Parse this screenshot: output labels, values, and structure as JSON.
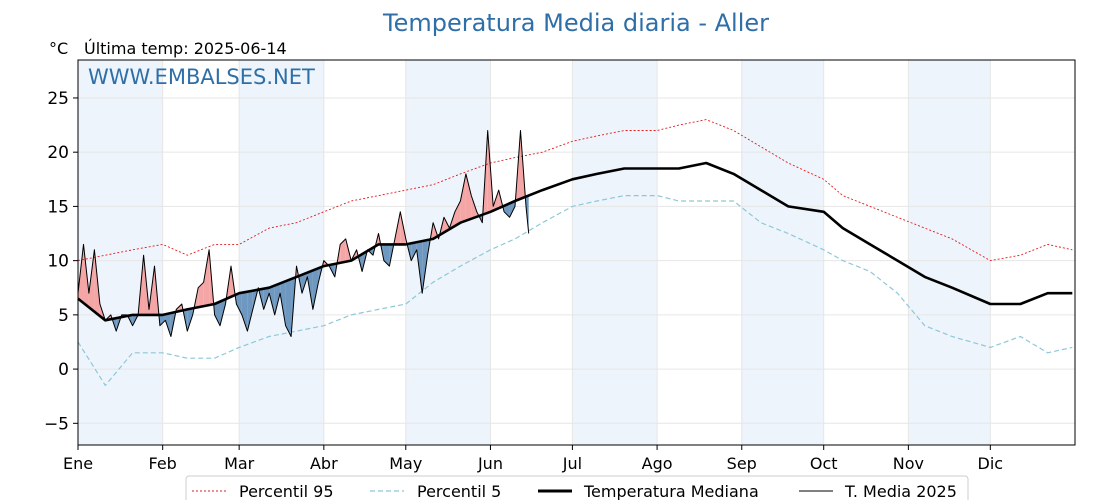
{
  "chart_data": {
    "type": "line",
    "title": "Temperatura Media diaria - Aller",
    "unit_label": "°C",
    "last_temp": "Última temp: 2025-06-14",
    "watermark": "WWW.EMBALSES.NET",
    "xlabel": "",
    "ylabel": "°C",
    "ylim": [
      -7,
      28.5
    ],
    "xlim": [
      0,
      365
    ],
    "y_ticks": [
      -5,
      0,
      5,
      10,
      15,
      20,
      25
    ],
    "months": [
      "Ene",
      "Feb",
      "Mar",
      "Abr",
      "May",
      "Jun",
      "Jul",
      "Ago",
      "Sep",
      "Oct",
      "Nov",
      "Dic"
    ],
    "month_starts": [
      0,
      31,
      59,
      90,
      120,
      151,
      181,
      212,
      243,
      273,
      304,
      334
    ],
    "grid": true,
    "legend_position": "bottom",
    "colors": {
      "p95": "#e41a1c",
      "p5": "#8ec8d8",
      "median": "#000000",
      "current": "#000000",
      "above_fill": "#f4a6a6",
      "below_fill": "#6f98c0",
      "band": "#eef4fb",
      "title": "#2f6fa8"
    },
    "series": [
      {
        "name": "Percentil 95",
        "style": "dotted-red",
        "x": [
          0,
          10,
          20,
          31,
          40,
          50,
          59,
          70,
          80,
          90,
          100,
          110,
          120,
          130,
          140,
          151,
          160,
          170,
          181,
          190,
          200,
          212,
          220,
          230,
          240,
          250,
          260,
          273,
          280,
          290,
          300,
          310,
          320,
          334,
          345,
          355,
          364
        ],
        "values": [
          10,
          10.5,
          11,
          11.5,
          10.5,
          11.5,
          11.5,
          13,
          13.5,
          14.5,
          15.5,
          16,
          16.5,
          17,
          18,
          19,
          19.5,
          20,
          21,
          21.5,
          22,
          22,
          22.5,
          23,
          22,
          20.5,
          19,
          17.5,
          16,
          15,
          14,
          13,
          12,
          10,
          10.5,
          11.5,
          11
        ]
      },
      {
        "name": "Percentil 5",
        "style": "dashed-cyan",
        "x": [
          0,
          5,
          10,
          20,
          31,
          40,
          50,
          59,
          70,
          80,
          90,
          100,
          110,
          120,
          130,
          140,
          151,
          160,
          170,
          181,
          190,
          200,
          212,
          220,
          230,
          240,
          250,
          260,
          273,
          280,
          290,
          300,
          310,
          320,
          334,
          345,
          355,
          364
        ],
        "values": [
          2.5,
          0.5,
          -1.5,
          1.5,
          1.5,
          1,
          1,
          2,
          3,
          3.5,
          4,
          5,
          5.5,
          6,
          8,
          9.5,
          11,
          12,
          13.5,
          15,
          15.5,
          16,
          16,
          15.5,
          15.5,
          15.5,
          13.5,
          12.5,
          11,
          10,
          9,
          7,
          4,
          3,
          2,
          3,
          1.5,
          2
        ]
      },
      {
        "name": "Temperatura Mediana",
        "style": "solid-thick",
        "x": [
          0,
          10,
          20,
          31,
          40,
          50,
          59,
          70,
          80,
          90,
          100,
          110,
          120,
          130,
          140,
          151,
          160,
          170,
          181,
          190,
          200,
          212,
          220,
          230,
          240,
          250,
          260,
          273,
          280,
          290,
          300,
          310,
          320,
          334,
          345,
          355,
          364
        ],
        "values": [
          6.5,
          4.5,
          5,
          5,
          5.5,
          6,
          7,
          7.5,
          8.5,
          9.5,
          10,
          11.5,
          11.5,
          12,
          13.5,
          14.5,
          15.5,
          16.5,
          17.5,
          18,
          18.5,
          18.5,
          18.5,
          19,
          18,
          16.5,
          15,
          14.5,
          13,
          11.5,
          10,
          8.5,
          7.5,
          6,
          6,
          7,
          7
        ]
      },
      {
        "name": "T. Media 2025",
        "style": "solid-thin",
        "x": [
          0,
          2,
          4,
          6,
          8,
          10,
          12,
          14,
          16,
          18,
          20,
          22,
          24,
          26,
          28,
          30,
          32,
          34,
          36,
          38,
          40,
          42,
          44,
          46,
          48,
          50,
          52,
          54,
          56,
          58,
          60,
          62,
          64,
          66,
          68,
          70,
          72,
          74,
          76,
          78,
          80,
          82,
          84,
          86,
          88,
          90,
          92,
          94,
          96,
          98,
          100,
          102,
          104,
          106,
          108,
          110,
          112,
          114,
          116,
          118,
          120,
          122,
          124,
          126,
          128,
          130,
          132,
          134,
          136,
          138,
          140,
          142,
          144,
          146,
          148,
          150,
          152,
          154,
          156,
          158,
          160,
          162,
          164,
          165
        ],
        "values": [
          7,
          11.5,
          7,
          11,
          6,
          4.5,
          5,
          3.5,
          5,
          5,
          4,
          5,
          10.5,
          5.5,
          9.5,
          4,
          4.5,
          3,
          5.5,
          6,
          3.5,
          5,
          7.5,
          8,
          11,
          5,
          4,
          6,
          9.5,
          6,
          5,
          3.5,
          5.5,
          7.5,
          5.5,
          7,
          5,
          7,
          4,
          3,
          9.5,
          7,
          8.5,
          5.5,
          8,
          10,
          9.5,
          8.5,
          11.5,
          12,
          10,
          11,
          9,
          11,
          10.5,
          12.5,
          10,
          9.5,
          12,
          14.5,
          12,
          10,
          11,
          7,
          10.5,
          13.5,
          12,
          14,
          13,
          14.5,
          15.5,
          18,
          16,
          14.5,
          13.5,
          22,
          15,
          16.5,
          14.5,
          14,
          15,
          22,
          15,
          12.5
        ]
      }
    ]
  }
}
